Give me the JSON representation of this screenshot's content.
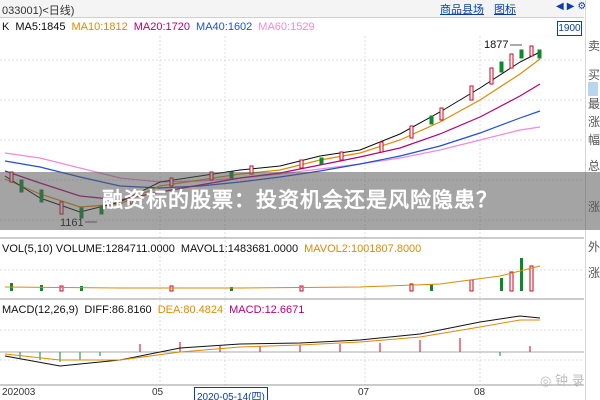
{
  "header": {
    "title": "033001)<日线)",
    "tabs": [
      "商品县场",
      "图标"
    ],
    "arrows": [
      "◀",
      "▶",
      "⚙"
    ]
  },
  "ma_line": [
    {
      "label": "MA5:1845",
      "color": "#0b0b0b"
    },
    {
      "label": "MA10:1812",
      "color": "#e08a00"
    },
    {
      "label": "MA20:1720",
      "color": "#b4007d"
    },
    {
      "label": "MA40:1602",
      "color": "#1f4fd8"
    },
    {
      "label": "MA60:1529",
      "color": "#f08ad9"
    }
  ],
  "price_marks": {
    "high": "1877",
    "low": "1161",
    "top_right": "1900"
  },
  "volume_line": [
    {
      "label": "VOL(5,10) VOLUME:1284711.0000",
      "color": "#111111"
    },
    {
      "label": "MAVOL1:1483681.0000",
      "color": "#111111"
    },
    {
      "label": "MAVOL2:1001807.8000",
      "color": "#e08a00"
    }
  ],
  "macd_line": [
    {
      "label": "MACD(12,26,9)",
      "color": "#111111"
    },
    {
      "label": "DIFF:86.8160",
      "color": "#111111"
    },
    {
      "label": "DEA:80.4824",
      "color": "#e08a00"
    },
    {
      "label": "MACD:12.6671",
      "color": "#b4007d"
    }
  ],
  "dates": {
    "d1": "202003",
    "d2": "05",
    "active": "2020-05-14(四)",
    "d3": "07",
    "d4": "08"
  },
  "sidebar_chars": [
    "卖",
    "买",
    "最",
    "涨",
    "幅",
    "总",
    "涨",
    "外",
    "涨"
  ],
  "banner": {
    "text": "融资标的股票：投资机会还是风险隐患？"
  },
  "watermark": "◎ 钟 录"
}
